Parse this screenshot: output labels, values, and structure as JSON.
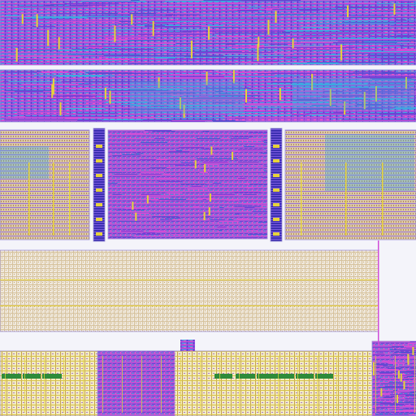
{
  "view": {
    "kind": "ic-layout-viewer",
    "background": "#f4f4fa",
    "has_visible_text": false
  },
  "layers": [
    {
      "name": "metal1",
      "color": "#7b3fd6"
    },
    {
      "name": "metal2",
      "color": "#d04cd8"
    },
    {
      "name": "metal3",
      "color": "#3fa8e0"
    },
    {
      "name": "metal4",
      "color": "#5a4fd0"
    },
    {
      "name": "via",
      "color": "#e6d23a"
    },
    {
      "name": "poly",
      "color": "#2e8b3a"
    },
    {
      "name": "diff",
      "color": "#c9a86a"
    },
    {
      "name": "cell-boundary",
      "color": "#9b8fd8"
    }
  ],
  "regions": [
    {
      "name": "top-routing-block",
      "style": "dense-routing"
    },
    {
      "name": "upper-bus-block",
      "style": "dense-routing"
    },
    {
      "name": "left-std-cell-block",
      "style": "std-cells"
    },
    {
      "name": "left-strip-column",
      "style": "strip"
    },
    {
      "name": "center-logic-block",
      "style": "dense-logic"
    },
    {
      "name": "right-strip-column",
      "style": "strip"
    },
    {
      "name": "right-std-cell-block",
      "style": "std-cells"
    },
    {
      "name": "memory-array-block",
      "style": "array"
    },
    {
      "name": "bottom-io-row",
      "style": "io-row"
    },
    {
      "name": "bottom-right-macro",
      "style": "dense-logic"
    }
  ]
}
